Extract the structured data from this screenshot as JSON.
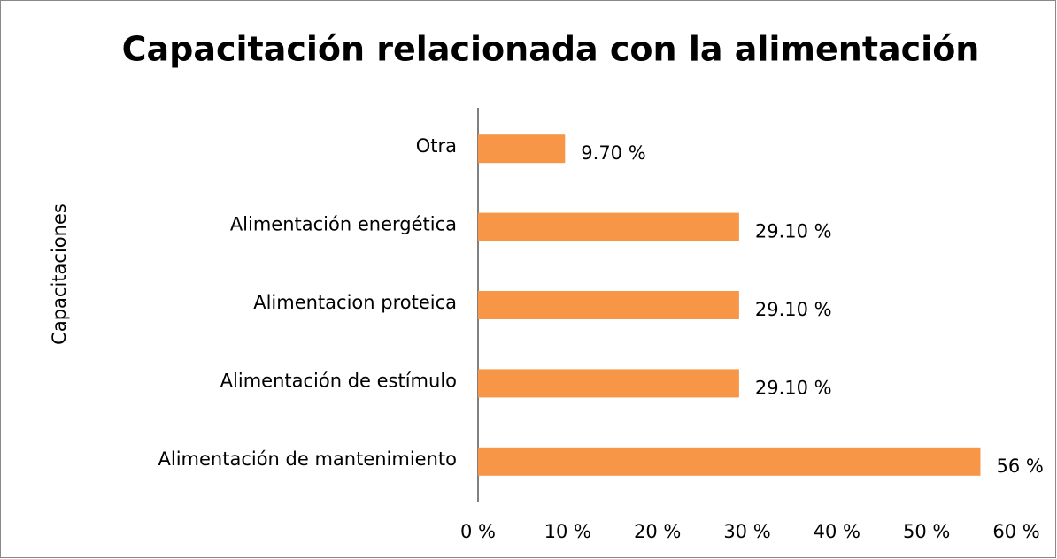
{
  "chart_data": {
    "type": "barh",
    "title": "Capacitación relacionada con la alimentación",
    "y_label": "Capacitaciones",
    "categories": [
      "Otra",
      "Alimentación energética",
      "Alimentacion proteica",
      "Alimentación de estímulo",
      "Alimentación de mantenimiento"
    ],
    "values": [
      9.7,
      29.1,
      29.1,
      29.1,
      56
    ],
    "value_labels": [
      "9.70 %",
      "29.10 %",
      "29.10 %",
      "29.10 %",
      "56 %"
    ],
    "color": "#f79646",
    "xlim": [
      0,
      60
    ],
    "xticks": [
      {
        "value": 0,
        "label": "0 %"
      },
      {
        "value": 10,
        "label": "10 %"
      },
      {
        "value": 20,
        "label": "20 %"
      },
      {
        "value": 30,
        "label": "30 %"
      },
      {
        "value": 40,
        "label": "40 %"
      },
      {
        "value": 50,
        "label": "50 %"
      },
      {
        "value": 60,
        "label": "60 %"
      }
    ],
    "grid": false
  }
}
